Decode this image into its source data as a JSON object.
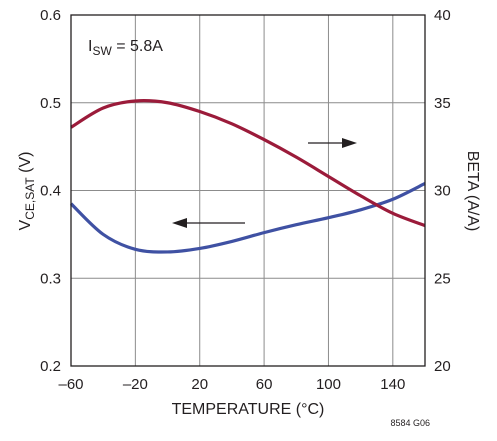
{
  "chart_data": {
    "type": "line",
    "xlabel": "TEMPERATURE (°C)",
    "ylabel_left": {
      "main": "V",
      "sub": "CE,SAT",
      "unit": " (V)"
    },
    "ylabel_right": "BETA (A/A)",
    "annotation": {
      "main": "I",
      "sub": "SW",
      "rest": " = 5.8A"
    },
    "figure_id": "8584 G06",
    "xlim": [
      -60,
      160
    ],
    "ylim_left": [
      0.2,
      0.6
    ],
    "ylim_right": [
      20,
      40
    ],
    "x_ticks": [
      "–60",
      "–20",
      "20",
      "60",
      "100",
      "140"
    ],
    "x_tick_values": [
      -60,
      -20,
      20,
      60,
      100,
      140
    ],
    "y_ticks_left": [
      "0.2",
      "0.3",
      "0.4",
      "0.5",
      "0.6"
    ],
    "y_ticks_right": [
      "20",
      "25",
      "30",
      "35",
      "40"
    ],
    "grid": true,
    "series": [
      {
        "axis": "left",
        "color": "#3f51a3",
        "x": [
          -60,
          -40,
          -20,
          0,
          20,
          40,
          60,
          80,
          100,
          120,
          140,
          160
        ],
        "y": [
          0.385,
          0.35,
          0.333,
          0.33,
          0.334,
          0.342,
          0.352,
          0.361,
          0.369,
          0.378,
          0.39,
          0.408
        ]
      },
      {
        "axis": "right",
        "color": "#9b1b3a",
        "x": [
          -60,
          -40,
          -20,
          0,
          20,
          40,
          60,
          80,
          100,
          120,
          140,
          160
        ],
        "y": [
          33.6,
          34.7,
          35.1,
          35.0,
          34.5,
          33.8,
          32.9,
          31.9,
          30.8,
          29.7,
          28.7,
          28.0
        ]
      }
    ],
    "arrows": [
      {
        "direction": "left",
        "target": "left"
      },
      {
        "direction": "right",
        "target": "right"
      }
    ]
  }
}
